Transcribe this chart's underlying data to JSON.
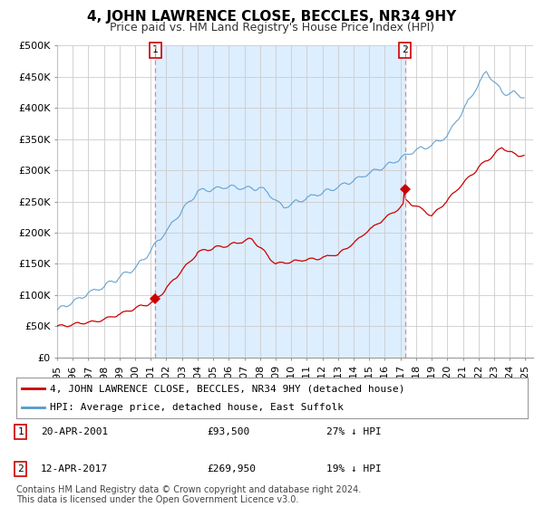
{
  "title": "4, JOHN LAWRENCE CLOSE, BECCLES, NR34 9HY",
  "subtitle": "Price paid vs. HM Land Registry's House Price Index (HPI)",
  "ylim": [
    0,
    500000
  ],
  "yticks": [
    0,
    50000,
    100000,
    150000,
    200000,
    250000,
    300000,
    350000,
    400000,
    450000,
    500000
  ],
  "xlim_start": 1995.0,
  "xlim_end": 2025.5,
  "transaction1": {
    "date_num": 2001.29,
    "price": 93500,
    "label": "1",
    "pct": "27% ↓ HPI",
    "date_str": "20-APR-2001"
  },
  "transaction2": {
    "date_num": 2017.28,
    "price": 269950,
    "label": "2",
    "pct": "19% ↓ HPI",
    "date_str": "12-APR-2017"
  },
  "line_color_red": "#cc0000",
  "line_color_blue": "#5599cc",
  "vline_color": "#dd8888",
  "shade_color": "#ddeeff",
  "grid_color": "#cccccc",
  "bg_color": "#ffffff",
  "legend_label_red": "4, JOHN LAWRENCE CLOSE, BECCLES, NR34 9HY (detached house)",
  "legend_label_blue": "HPI: Average price, detached house, East Suffolk",
  "footnote": "Contains HM Land Registry data © Crown copyright and database right 2024.\nThis data is licensed under the Open Government Licence v3.0.",
  "title_fontsize": 11,
  "subtitle_fontsize": 9,
  "axis_fontsize": 8,
  "legend_fontsize": 8,
  "footnote_fontsize": 7
}
